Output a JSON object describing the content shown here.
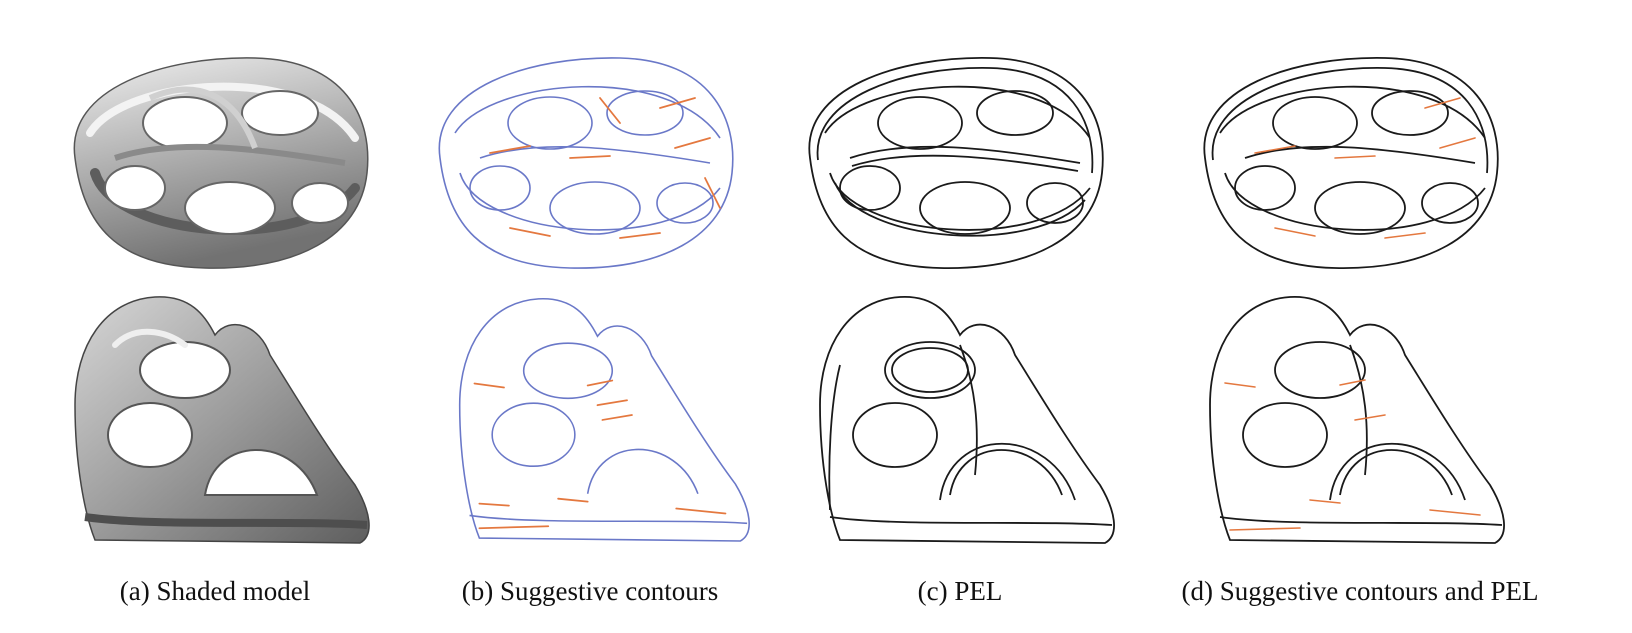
{
  "figure": {
    "captions": {
      "a": "(a) Shaded model",
      "b": "(b) Suggestive contours",
      "c": "(c) PEL",
      "d": "(d) Suggestive contours and PEL"
    },
    "colors": {
      "shade_light": "#e6e6e6",
      "shade_mid": "#a9a9a9",
      "shade_dark": "#6f6f6f",
      "contour_blue": "#6a78c8",
      "suggestive_orange": "#e4783f",
      "pel_black": "#1a1a1a"
    }
  }
}
